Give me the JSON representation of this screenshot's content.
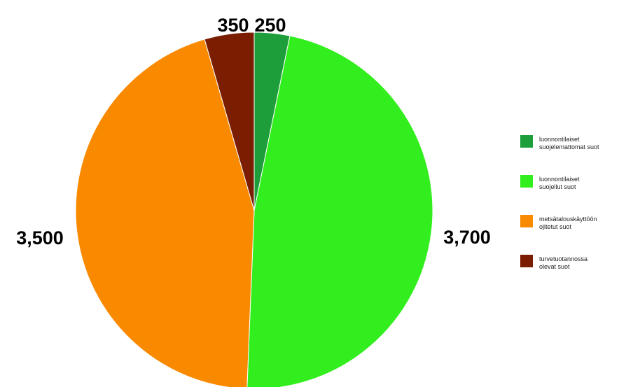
{
  "chart_data": {
    "type": "pie",
    "categories": [
      "luonnontilaiset suojelemattomat suot",
      "luonnontilaiset suojellut suot",
      "metsätalouskäyttöön ojitetut suot",
      "turvetuotannossa olevat suot"
    ],
    "values": [
      250,
      3700,
      3500,
      350
    ],
    "value_labels": [
      "250",
      "3,700",
      "3,500",
      "350"
    ],
    "colors": [
      "#1e9e3a",
      "#33ee1e",
      "#f98a00",
      "#7a1d00"
    ],
    "start": "12 o'clock",
    "direction": "clockwise",
    "legend": {
      "position": "right",
      "entries": [
        [
          "luonnontilaiset",
          "suojelemattomat suot"
        ],
        [
          "luonnontilaiset",
          "suojellut suot"
        ],
        [
          "metsätalouskäyttöön",
          "ojitetut suot"
        ],
        [
          "turvetuotannossa",
          "olevat suot"
        ]
      ]
    }
  }
}
